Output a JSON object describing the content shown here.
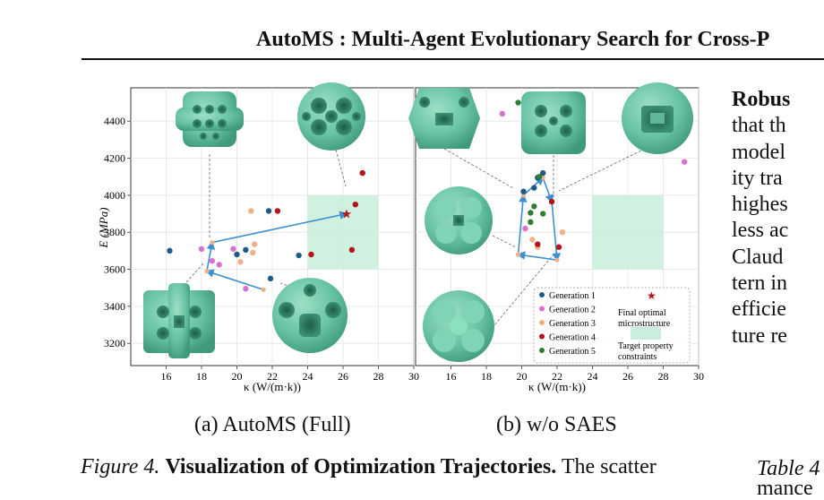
{
  "header": {
    "title": "AutoMS : Multi-Agent Evolutionary Search for Cross-P"
  },
  "figure": {
    "subcaption_a": "(a) AutoMS (Full)",
    "subcaption_b": "(b) w/o SAES",
    "caption_label": "Figure 4.",
    "caption_title": "Visualization of Optimization Trajectories.",
    "caption_text": " The scatter"
  },
  "right_column": {
    "lines": [
      "Robus",
      "that th",
      "model",
      "ity tra",
      "highes",
      "less ac",
      "Claud",
      "tern in",
      "efficie",
      "ture re"
    ],
    "table_label": "Table 4",
    "table_text": "mance"
  },
  "chart_data": [
    {
      "type": "scatter",
      "title": "",
      "xlabel": "κ (W/(m·k))",
      "ylabel": "E (MPa)",
      "xlim": [
        14,
        30
      ],
      "ylim": [
        3080,
        4580
      ],
      "xticks": [
        16,
        18,
        20,
        22,
        24,
        26,
        28,
        30
      ],
      "yticks": [
        3200,
        3400,
        3600,
        3800,
        4000,
        4200,
        4400
      ],
      "grid": true,
      "target_region": {
        "x": [
          24,
          28
        ],
        "y": [
          3600,
          4000
        ],
        "color": "#c9eedb"
      },
      "series": [
        {
          "name": "Generation 1",
          "color": "#1f5a85",
          "points": [
            [
              16.2,
              3700
            ],
            [
              20.0,
              3680
            ],
            [
              20.5,
              3705
            ],
            [
              21.8,
              3915
            ],
            [
              23.5,
              3675
            ],
            [
              21.9,
              3550
            ]
          ]
        },
        {
          "name": "Generation 2",
          "color": "#d872d2",
          "points": [
            [
              18.0,
              3710
            ],
            [
              18.6,
              3645
            ],
            [
              19.0,
              3625
            ],
            [
              19.8,
              3710
            ],
            [
              20.5,
              3495
            ]
          ]
        },
        {
          "name": "Generation 3",
          "color": "#f0b088",
          "points": [
            [
              20.8,
              3915
            ],
            [
              20.2,
              3640
            ],
            [
              20.9,
              3690
            ],
            [
              21.0,
              3735
            ]
          ]
        },
        {
          "name": "Generation 4",
          "color": "#b5121b",
          "points": [
            [
              22.3,
              3915
            ],
            [
              24.2,
              3680
            ],
            [
              26.7,
              3950
            ],
            [
              27.1,
              4120
            ],
            [
              26.5,
              3705
            ]
          ]
        }
      ],
      "trajectory": [
        [
          21.5,
          3490
        ],
        [
          18.3,
          3590
        ],
        [
          18.6,
          3745
        ],
        [
          26.2,
          3900
        ]
      ],
      "final_optimal": [
        26.2,
        3900
      ]
    },
    {
      "type": "scatter",
      "title": "",
      "xlabel": "κ (W/(m·k))",
      "ylabel": "",
      "xlim": [
        14,
        30
      ],
      "ylim": [
        3080,
        4580
      ],
      "xticks": [
        16,
        18,
        20,
        22,
        24,
        26,
        28,
        30
      ],
      "grid": true,
      "target_region": {
        "x": [
          24,
          28
        ],
        "y": [
          3600,
          4000
        ],
        "color": "#c9eedb"
      },
      "series": [
        {
          "name": "Generation 1",
          "color": "#1f5a85",
          "points": [
            [
              20.1,
              4020
            ],
            [
              20.7,
              4040
            ],
            [
              21.2,
              4120
            ],
            [
              20.9,
              4095
            ]
          ]
        },
        {
          "name": "Generation 2",
          "color": "#d872d2",
          "points": [
            [
              18.9,
              4440
            ],
            [
              29.2,
              4180
            ],
            [
              20.2,
              3820
            ]
          ]
        },
        {
          "name": "Generation 3",
          "color": "#f0b088",
          "points": [
            [
              20.6,
              3760
            ],
            [
              22.3,
              3800
            ],
            [
              20.9,
              3720
            ]
          ]
        },
        {
          "name": "Generation 4",
          "color": "#b5121b",
          "points": [
            [
              21.7,
              3965
            ],
            [
              22.1,
              3720
            ],
            [
              20.9,
              3735
            ]
          ]
        },
        {
          "name": "Generation 5",
          "color": "#2e7d32",
          "points": [
            [
              19.8,
              4500
            ],
            [
              20.7,
              3940
            ],
            [
              20.5,
              3905
            ],
            [
              21.2,
              3900
            ],
            [
              21.0,
              4100
            ],
            [
              20.5,
              3855
            ]
          ]
        }
      ],
      "trajectory": [
        [
          19.8,
          3680
        ],
        [
          20.1,
          4000
        ],
        [
          21.2,
          4095
        ],
        [
          21.7,
          3965
        ],
        [
          22.0,
          3650
        ],
        [
          19.8,
          3680
        ]
      ],
      "legend": {
        "placement": "bottom-right",
        "entries": [
          "Generation 1",
          "Generation 2",
          "Generation 3",
          "Generation 4",
          "Generation 5"
        ],
        "final_label_1": "Final optimal",
        "final_label_2": "microstructure",
        "target_label_1": "Target property",
        "target_label_2": "constraints"
      }
    }
  ],
  "colors": {
    "microstructure": "#67c2a4",
    "microstructure_dark": "#2d7d62",
    "trajectory": "#3d8fd0"
  }
}
